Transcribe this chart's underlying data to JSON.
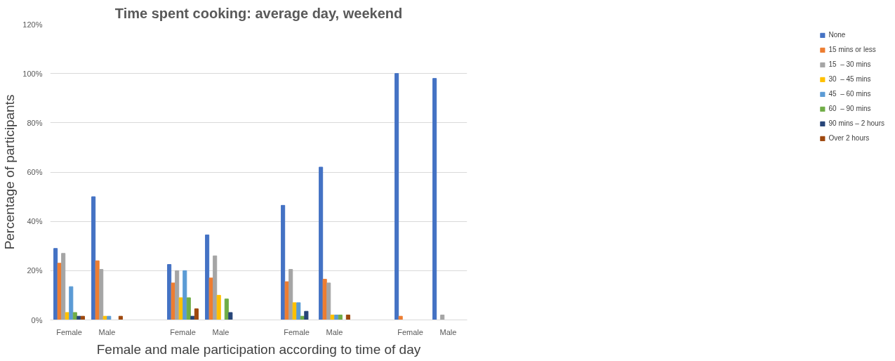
{
  "chart_data": {
    "type": "bar",
    "title": "Time spent cooking: average day, weekend",
    "xlabel": "Female and male participation according to time of day",
    "ylabel": "Percentage of participants",
    "categories": [
      "Female",
      "Male",
      null,
      "Female",
      "Male",
      null,
      "Female",
      "Male",
      null,
      "Female",
      "Male"
    ],
    "series": [
      {
        "name": "None",
        "color": "#4472c4",
        "values": [
          29,
          50,
          null,
          22.5,
          34.5,
          null,
          46.5,
          62,
          null,
          100,
          98
        ]
      },
      {
        "name": "15 mins or less",
        "color": "#ed7d31",
        "values": [
          23,
          24,
          null,
          15,
          17,
          null,
          15.5,
          16.5,
          null,
          1.5,
          0
        ]
      },
      {
        "name": "15  – 30 mins",
        "color": "#a5a5a5",
        "values": [
          27,
          20.5,
          null,
          20,
          26,
          null,
          20.5,
          15,
          null,
          0,
          2
        ]
      },
      {
        "name": "30  – 45 mins",
        "color": "#ffc000",
        "values": [
          3,
          1.5,
          null,
          9,
          10,
          null,
          7,
          2,
          null,
          0,
          0
        ]
      },
      {
        "name": "45  – 60 mins",
        "color": "#5b9bd5",
        "values": [
          13.5,
          1.5,
          null,
          20,
          0,
          null,
          7,
          2,
          null,
          0,
          0
        ]
      },
      {
        "name": "60  – 90 mins",
        "color": "#70ad47",
        "values": [
          3,
          0,
          null,
          9,
          8.5,
          null,
          1.5,
          2,
          null,
          0,
          0
        ]
      },
      {
        "name": "90 mins – 2 hours",
        "color": "#264478",
        "values": [
          1.5,
          0,
          null,
          1.5,
          3,
          null,
          3.5,
          0,
          null,
          0,
          0
        ]
      },
      {
        "name": "Over 2 hours",
        "color": "#9e480e",
        "values": [
          1.5,
          1.5,
          null,
          4.5,
          0,
          null,
          0,
          2,
          null,
          0,
          0
        ]
      }
    ],
    "ylim": [
      0,
      120
    ],
    "yticks": [
      {
        "value": 0,
        "label": "0%"
      },
      {
        "value": 20,
        "label": "20%"
      },
      {
        "value": 40,
        "label": "40%"
      },
      {
        "value": 60,
        "label": "60%"
      },
      {
        "value": 80,
        "label": "80%"
      },
      {
        "value": 100,
        "label": "100%"
      },
      {
        "value": 120,
        "label": "120%"
      }
    ],
    "grid": "y",
    "legend": "right"
  }
}
